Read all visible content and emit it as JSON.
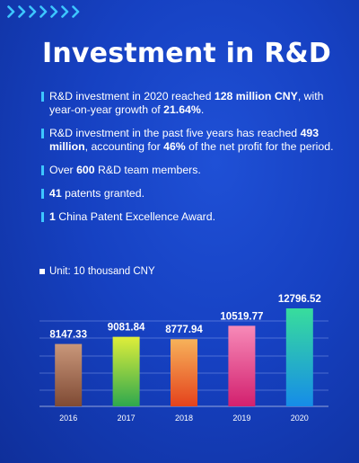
{
  "header": {
    "title": "Investment in R&D",
    "decor_icon": "chevron-right-icon",
    "accent_color": "#3dc6ff"
  },
  "bullets": [
    {
      "segments": [
        {
          "t": "R&D investment in 2020 reached "
        },
        {
          "t": "128 million CNY",
          "b": true
        },
        {
          "t": ", with year-on-year growth of "
        },
        {
          "t": "21.64%",
          "b": true
        },
        {
          "t": "."
        }
      ]
    },
    {
      "segments": [
        {
          "t": "R&D investment in the past five years has reached "
        },
        {
          "t": "493 million",
          "b": true
        },
        {
          "t": ", accounting for "
        },
        {
          "t": "46%",
          "b": true
        },
        {
          "t": " of the net profit for the period."
        }
      ]
    },
    {
      "segments": [
        {
          "t": "Over "
        },
        {
          "t": "600",
          "b": true
        },
        {
          "t": " R&D team members."
        }
      ]
    },
    {
      "segments": [
        {
          "t": "41",
          "b": true
        },
        {
          "t": " patents granted."
        }
      ]
    },
    {
      "segments": [
        {
          "t": "1",
          "b": true
        },
        {
          "t": " China Patent Excellence Award."
        }
      ]
    }
  ],
  "chart_data": {
    "type": "bar",
    "unit_label": "Unit: 10 thousand CNY",
    "categories": [
      "2016",
      "2017",
      "2018",
      "2019",
      "2020"
    ],
    "values": [
      8147.33,
      9081.84,
      8777.94,
      10519.77,
      12796.52
    ],
    "value_labels": [
      "8147.33",
      "9081.84",
      "8777.94",
      "10519.77",
      "12796.52"
    ],
    "bar_colors": [
      [
        "#c9977a",
        "#7f4a34"
      ],
      [
        "#dfee3a",
        "#2ea84e"
      ],
      [
        "#f7b25a",
        "#e4421c"
      ],
      [
        "#f78ab8",
        "#d2206e"
      ],
      [
        "#38dd9c",
        "#168ce8"
      ]
    ],
    "ylim": [
      0,
      13500
    ],
    "grid": true
  }
}
